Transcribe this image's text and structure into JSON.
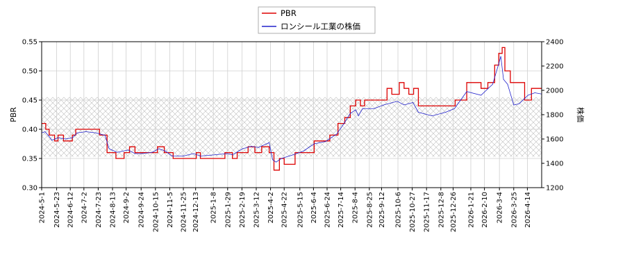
{
  "chart_data": {
    "type": "line",
    "title": "",
    "legend": {
      "placement": "top-center",
      "entries": [
        {
          "name": "PBR",
          "color": "#dd0000"
        },
        {
          "name": "ロンシール工業の株価",
          "color": "#2222cc"
        }
      ]
    },
    "ylabel_left": "PBR",
    "ylabel_right": "株価",
    "ylim_left": [
      0.3,
      0.55
    ],
    "ylim_right": [
      1200,
      2400
    ],
    "yticks_left": [
      "0.30",
      "0.35",
      "0.40",
      "0.45",
      "0.50",
      "0.55"
    ],
    "yticks_right": [
      "1200",
      "1400",
      "1600",
      "1800",
      "2000",
      "2200",
      "2400"
    ],
    "xlim": [
      "2024-05-01",
      "2026-05-05"
    ],
    "xticks": [
      "2024-5-1",
      "2024-5-23",
      "2024-6-12",
      "2024-7-2",
      "2024-7-23",
      "2024-8-13",
      "2024-9-2",
      "2024-9-24",
      "2024-10-15",
      "2024-11-5",
      "2024-11-25",
      "2024-12-13",
      "2025-1-8",
      "2025-1-29",
      "2025-2-19",
      "2025-3-12",
      "2025-4-2",
      "2025-4-22",
      "2025-5-15",
      "2025-6-4",
      "2025-6-24",
      "2025-7-14",
      "2025-8-4",
      "2025-8-25",
      "2025-9-12",
      "2025-10-6",
      "2025-10-27",
      "2025-11-17",
      "2025-12-8",
      "2025-12-26",
      "2026-1-21",
      "2026-2-10",
      "2026-3-4",
      "2026-3-25",
      "2026-4-14"
    ],
    "grid": true,
    "hatched_band_left": [
      0.353,
      0.455
    ],
    "series": [
      {
        "name": "PBR",
        "axis": "left",
        "color": "#dd0000",
        "points": [
          [
            "2024-05-01",
            0.41
          ],
          [
            "2024-05-07",
            0.4
          ],
          [
            "2024-05-12",
            0.39
          ],
          [
            "2024-05-20",
            0.38
          ],
          [
            "2024-05-25",
            0.39
          ],
          [
            "2024-06-02",
            0.38
          ],
          [
            "2024-06-15",
            0.39
          ],
          [
            "2024-06-20",
            0.4
          ],
          [
            "2024-07-25",
            0.39
          ],
          [
            "2024-08-05",
            0.36
          ],
          [
            "2024-08-18",
            0.35
          ],
          [
            "2024-08-30",
            0.36
          ],
          [
            "2024-09-07",
            0.37
          ],
          [
            "2024-09-15",
            0.36
          ],
          [
            "2024-10-10",
            0.36
          ],
          [
            "2024-10-18",
            0.37
          ],
          [
            "2024-10-28",
            0.36
          ],
          [
            "2024-11-10",
            0.35
          ],
          [
            "2024-12-14",
            0.36
          ],
          [
            "2024-12-20",
            0.35
          ],
          [
            "2025-01-25",
            0.36
          ],
          [
            "2025-02-05",
            0.35
          ],
          [
            "2025-02-12",
            0.36
          ],
          [
            "2025-02-28",
            0.37
          ],
          [
            "2025-03-10",
            0.36
          ],
          [
            "2025-03-20",
            0.37
          ],
          [
            "2025-03-31",
            0.36
          ],
          [
            "2025-04-07",
            0.33
          ],
          [
            "2025-04-15",
            0.35
          ],
          [
            "2025-04-22",
            0.34
          ],
          [
            "2025-05-08",
            0.36
          ],
          [
            "2025-06-05",
            0.38
          ],
          [
            "2025-06-28",
            0.39
          ],
          [
            "2025-07-10",
            0.41
          ],
          [
            "2025-07-20",
            0.42
          ],
          [
            "2025-07-28",
            0.44
          ],
          [
            "2025-08-05",
            0.45
          ],
          [
            "2025-08-12",
            0.44
          ],
          [
            "2025-08-18",
            0.45
          ],
          [
            "2025-09-20",
            0.47
          ],
          [
            "2025-09-27",
            0.46
          ],
          [
            "2025-10-08",
            0.48
          ],
          [
            "2025-10-15",
            0.47
          ],
          [
            "2025-10-22",
            0.46
          ],
          [
            "2025-10-29",
            0.47
          ],
          [
            "2025-11-05",
            0.44
          ],
          [
            "2025-12-29",
            0.45
          ],
          [
            "2026-01-15",
            0.48
          ],
          [
            "2026-02-05",
            0.47
          ],
          [
            "2026-02-15",
            0.48
          ],
          [
            "2026-02-25",
            0.51
          ],
          [
            "2026-03-03",
            0.53
          ],
          [
            "2026-03-08",
            0.54
          ],
          [
            "2026-03-12",
            0.5
          ],
          [
            "2026-03-20",
            0.48
          ],
          [
            "2026-04-10",
            0.45
          ],
          [
            "2026-04-20",
            0.47
          ],
          [
            "2026-05-05",
            0.47
          ]
        ]
      },
      {
        "name": "ロンシール工業の株価",
        "axis": "right",
        "color": "#2222cc",
        "points": [
          [
            "2024-05-01",
            1650
          ],
          [
            "2024-05-06",
            1660
          ],
          [
            "2024-05-12",
            1620
          ],
          [
            "2024-05-16",
            1590
          ],
          [
            "2024-05-25",
            1610
          ],
          [
            "2024-06-05",
            1600
          ],
          [
            "2024-06-15",
            1610
          ],
          [
            "2024-06-22",
            1650
          ],
          [
            "2024-07-05",
            1660
          ],
          [
            "2024-07-20",
            1650
          ],
          [
            "2024-08-02",
            1630
          ],
          [
            "2024-08-08",
            1520
          ],
          [
            "2024-08-20",
            1490
          ],
          [
            "2024-09-05",
            1510
          ],
          [
            "2024-09-15",
            1480
          ],
          [
            "2024-09-25",
            1480
          ],
          [
            "2024-10-10",
            1490
          ],
          [
            "2024-10-20",
            1520
          ],
          [
            "2024-10-30",
            1500
          ],
          [
            "2024-11-08",
            1460
          ],
          [
            "2024-11-25",
            1460
          ],
          [
            "2024-12-10",
            1480
          ],
          [
            "2024-12-20",
            1460
          ],
          [
            "2025-01-10",
            1470
          ],
          [
            "2025-01-28",
            1480
          ],
          [
            "2025-02-05",
            1470
          ],
          [
            "2025-02-20",
            1520
          ],
          [
            "2025-03-05",
            1540
          ],
          [
            "2025-03-15",
            1530
          ],
          [
            "2025-03-31",
            1570
          ],
          [
            "2025-04-05",
            1430
          ],
          [
            "2025-04-10",
            1410
          ],
          [
            "2025-04-18",
            1440
          ],
          [
            "2025-05-05",
            1470
          ],
          [
            "2025-05-20",
            1500
          ],
          [
            "2025-06-05",
            1560
          ],
          [
            "2025-06-22",
            1580
          ],
          [
            "2025-07-08",
            1640
          ],
          [
            "2025-07-18",
            1720
          ],
          [
            "2025-07-28",
            1810
          ],
          [
            "2025-08-05",
            1840
          ],
          [
            "2025-08-09",
            1790
          ],
          [
            "2025-08-15",
            1850
          ],
          [
            "2025-09-01",
            1850
          ],
          [
            "2025-09-15",
            1880
          ],
          [
            "2025-10-05",
            1910
          ],
          [
            "2025-10-15",
            1880
          ],
          [
            "2025-10-28",
            1900
          ],
          [
            "2025-11-05",
            1820
          ],
          [
            "2025-11-25",
            1790
          ],
          [
            "2025-12-15",
            1820
          ],
          [
            "2025-12-28",
            1850
          ],
          [
            "2026-01-15",
            1990
          ],
          [
            "2026-02-05",
            1960
          ],
          [
            "2026-02-22",
            2050
          ],
          [
            "2026-03-02",
            2200
          ],
          [
            "2026-03-06",
            2280
          ],
          [
            "2026-03-10",
            2090
          ],
          [
            "2026-03-16",
            2050
          ],
          [
            "2026-03-25",
            1880
          ],
          [
            "2026-04-02",
            1890
          ],
          [
            "2026-04-15",
            1960
          ],
          [
            "2026-04-25",
            1980
          ],
          [
            "2026-05-05",
            1970
          ]
        ]
      }
    ]
  }
}
